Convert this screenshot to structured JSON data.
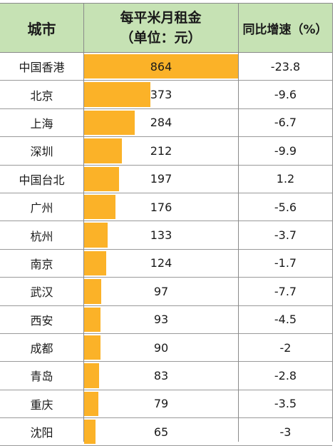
{
  "chart_data": {
    "type": "table",
    "columns": [
      "城市",
      "每平米月租金",
      "（单位：元）",
      "同比增速（%）"
    ],
    "max_value": 864,
    "rows": [
      {
        "city": "中国香港",
        "rent": 864,
        "yoy": "-23.8"
      },
      {
        "city": "北京",
        "rent": 373,
        "yoy": "-9.6"
      },
      {
        "city": "上海",
        "rent": 284,
        "yoy": "-6.7"
      },
      {
        "city": "深圳",
        "rent": 212,
        "yoy": "-9.9"
      },
      {
        "city": "中国台北",
        "rent": 197,
        "yoy": "1.2"
      },
      {
        "city": "广州",
        "rent": 176,
        "yoy": "-5.6"
      },
      {
        "city": "杭州",
        "rent": 133,
        "yoy": "-3.7"
      },
      {
        "city": "南京",
        "rent": 124,
        "yoy": "-1.7"
      },
      {
        "city": "武汉",
        "rent": 97,
        "yoy": "-7.7"
      },
      {
        "city": "西安",
        "rent": 93,
        "yoy": "-4.5"
      },
      {
        "city": "成都",
        "rent": 90,
        "yoy": "-2"
      },
      {
        "city": "青岛",
        "rent": 83,
        "yoy": "-2.8"
      },
      {
        "city": "重庆",
        "rent": 79,
        "yoy": "-3.5"
      },
      {
        "city": "沈阳",
        "rent": 65,
        "yoy": "-3"
      }
    ],
    "bar_color": "#fbb228",
    "header_color": "#c6e2b4"
  }
}
